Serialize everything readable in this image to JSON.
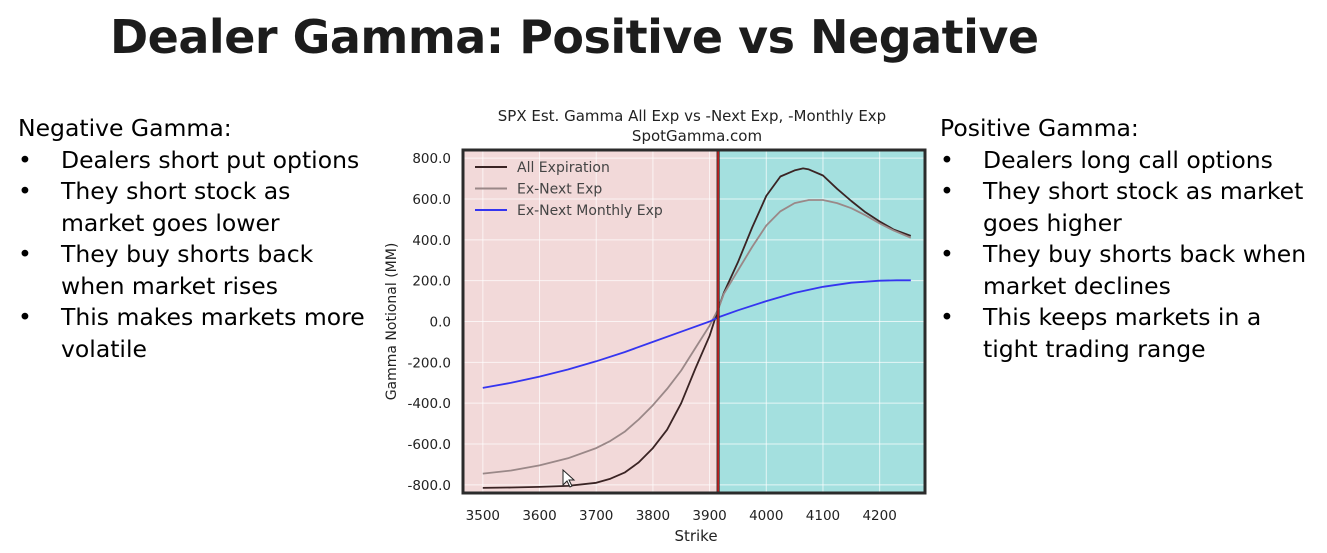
{
  "slide": {
    "title": "Dealer Gamma: Positive vs Negative"
  },
  "left_panel": {
    "heading": "Negative Gamma:",
    "bullet_symbol": "•",
    "bullets": [
      "Dealers short put options",
      "They short stock as market goes lower",
      "They buy shorts back when market rises",
      "This makes markets more volatile"
    ]
  },
  "right_panel": {
    "heading": "Positive Gamma:",
    "bullet_symbol": "•",
    "bullets": [
      "Dealers long call options",
      "They short stock as market goes higher",
      "They buy shorts back when market declines",
      "This keeps markets in a tight trading range"
    ]
  },
  "chart_data": {
    "type": "line",
    "title": "SPX Est. Gamma All Exp vs -Next Exp, -Monthly Exp",
    "subtitle": "SpotGamma.com",
    "xlabel": "Strike",
    "ylabel": "Gamma Notional (MM)",
    "xlim": [
      3465,
      4280
    ],
    "ylim": [
      -840,
      840
    ],
    "x_ticks": [
      3500,
      3600,
      3700,
      3800,
      3900,
      4000,
      4100,
      4200
    ],
    "y_ticks": [
      800,
      600,
      400,
      200,
      0,
      -200,
      -400,
      -600,
      -800
    ],
    "y_tick_labels": [
      "800.0",
      "600.0",
      "400.0",
      "200.0",
      "0.0",
      "-200.0",
      "-400.0",
      "-600.0",
      "-800.0"
    ],
    "grid": true,
    "legend_position": "top-left",
    "regions": [
      {
        "name": "negative-gamma",
        "from": 3465,
        "to": 3915,
        "color": "#f2d9d9"
      },
      {
        "name": "positive-gamma",
        "from": 3915,
        "to": 4280,
        "color": "#a4e0df"
      }
    ],
    "flip_line": {
      "x": 3915,
      "color": "#cc2222"
    },
    "series": [
      {
        "name": "All Expiration",
        "color": "#3a2424",
        "x": [
          3500,
          3550,
          3600,
          3650,
          3700,
          3725,
          3750,
          3775,
          3800,
          3825,
          3850,
          3875,
          3900,
          3915,
          3925,
          3950,
          3975,
          4000,
          4025,
          4050,
          4065,
          4075,
          4100,
          4125,
          4150,
          4175,
          4200,
          4225,
          4255
        ],
        "values": [
          -815,
          -813,
          -810,
          -805,
          -790,
          -770,
          -740,
          -690,
          -620,
          -530,
          -400,
          -230,
          -70,
          60,
          140,
          290,
          460,
          615,
          710,
          740,
          750,
          745,
          715,
          650,
          590,
          535,
          490,
          450,
          420
        ]
      },
      {
        "name": "Ex-Next Exp",
        "color": "#9a8888",
        "x": [
          3500,
          3550,
          3600,
          3650,
          3700,
          3725,
          3750,
          3775,
          3800,
          3825,
          3850,
          3875,
          3900,
          3915,
          3925,
          3950,
          3975,
          4000,
          4025,
          4050,
          4075,
          4100,
          4125,
          4150,
          4175,
          4200,
          4225,
          4255
        ],
        "values": [
          -745,
          -730,
          -705,
          -670,
          -620,
          -585,
          -540,
          -480,
          -410,
          -330,
          -240,
          -130,
          -20,
          60,
          135,
          250,
          365,
          470,
          540,
          580,
          595,
          595,
          580,
          555,
          520,
          480,
          445,
          410
        ]
      },
      {
        "name": "Ex-Next Monthly Exp",
        "color": "#3535f0",
        "x": [
          3500,
          3550,
          3600,
          3650,
          3700,
          3750,
          3800,
          3850,
          3900,
          3915,
          3950,
          4000,
          4050,
          4100,
          4150,
          4200,
          4230,
          4255
        ],
        "values": [
          -325,
          -300,
          -270,
          -235,
          -195,
          -150,
          -100,
          -50,
          0,
          20,
          55,
          100,
          140,
          170,
          190,
          200,
          202,
          202
        ]
      }
    ]
  }
}
